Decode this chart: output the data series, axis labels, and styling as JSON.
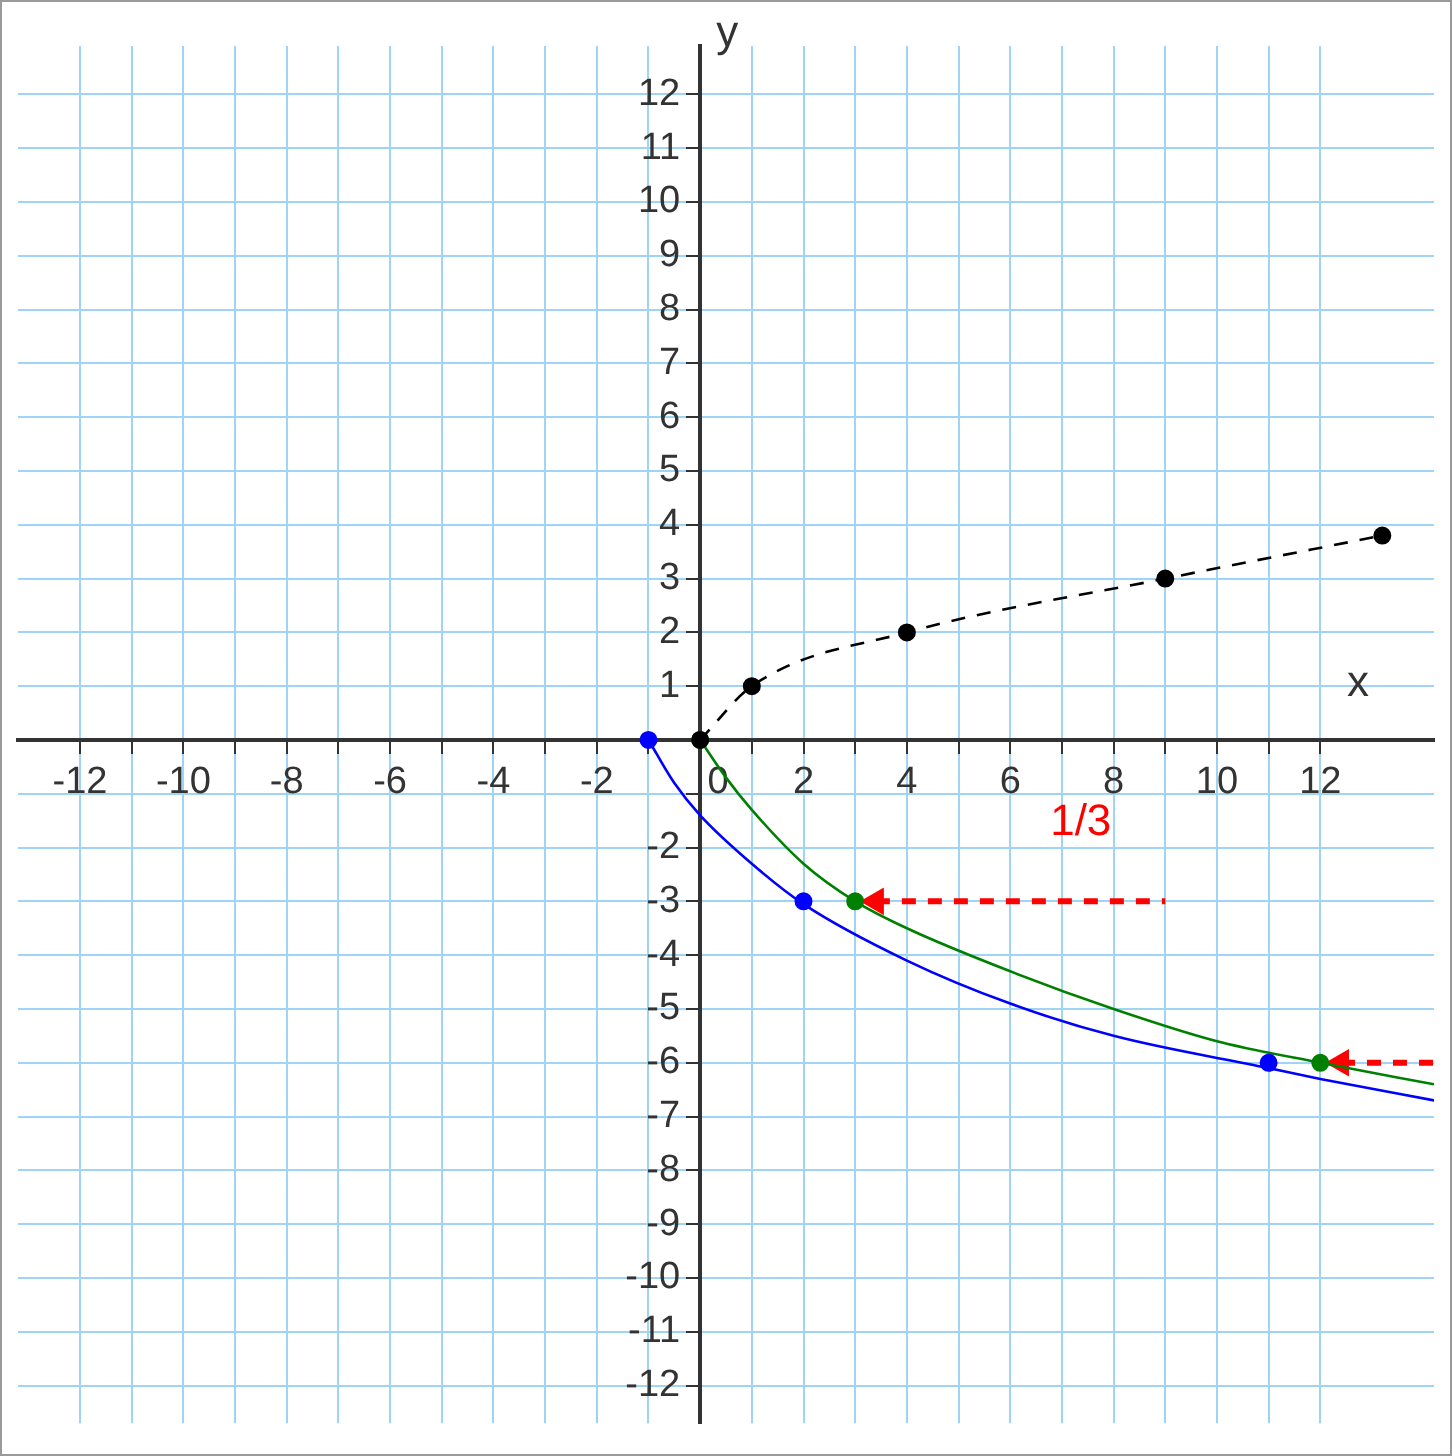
{
  "chart_data": {
    "type": "line",
    "xlabel": "x",
    "ylabel": "y",
    "xlim": [
      -13.2,
      14.2
    ],
    "ylim": [
      -12.7,
      12.9
    ],
    "xticks": [
      -12,
      {
        "value": -11,
        "label": null
      },
      -10,
      {
        "value": -9,
        "label": null
      },
      -8,
      {
        "value": -7,
        "label": null
      },
      -6,
      {
        "value": -5,
        "label": null
      },
      -4,
      {
        "value": -3,
        "label": null
      },
      -2,
      {
        "value": -1,
        "label": null
      },
      0,
      {
        "value": 1,
        "label": null
      },
      2,
      {
        "value": 3,
        "label": null
      },
      4,
      {
        "value": 5,
        "label": null
      },
      6,
      {
        "value": 7,
        "label": null
      },
      8,
      {
        "value": 9,
        "label": null
      },
      10,
      {
        "value": 11,
        "label": null
      },
      12
    ],
    "yticks": [
      -12,
      -11,
      -10,
      -9,
      -8,
      -7,
      -6,
      -5,
      -4,
      -3,
      -2,
      {
        "value": -1,
        "label": null
      },
      {
        "value": 0,
        "label": null
      },
      1,
      2,
      3,
      4,
      5,
      6,
      7,
      8,
      9,
      10,
      11,
      12
    ],
    "grid": true,
    "legend": false,
    "series": [
      {
        "type": "line",
        "color": "#000000",
        "marker": "circle",
        "line_style": "dashed",
        "x": [
          0,
          1,
          4,
          9,
          13.2
        ],
        "values": [
          0,
          1,
          2,
          3,
          3.8
        ]
      },
      {
        "type": "line",
        "color": "#0000ff",
        "marker": "none",
        "line_style": "solid",
        "x": [
          -1,
          -0.5,
          0,
          1,
          2,
          4,
          6,
          8,
          11,
          12,
          14.2
        ],
        "values": [
          0,
          -0.8,
          -1.4,
          -2.3,
          -3.05,
          -4.1,
          -4.9,
          -5.5,
          -6.1,
          -6.3,
          -6.7
        ]
      },
      {
        "type": "scatter",
        "color": "#0000ff",
        "marker": "circle",
        "x": [
          -1,
          2,
          11
        ],
        "values": [
          0,
          -3,
          -6
        ]
      },
      {
        "type": "line",
        "color": "#008000",
        "marker": "none",
        "line_style": "solid",
        "x": [
          0,
          0.5,
          1,
          2,
          3,
          4,
          6,
          8,
          10,
          12,
          14.2
        ],
        "values": [
          0,
          -0.7,
          -1.3,
          -2.3,
          -3,
          -3.5,
          -4.3,
          -5,
          -5.6,
          -6,
          -6.4
        ]
      },
      {
        "type": "scatter",
        "color": "#008000",
        "marker": "circle",
        "x": [
          0,
          3,
          12
        ],
        "values": [
          0,
          -3,
          -6
        ]
      },
      {
        "type": "line",
        "color": "#ff0000",
        "marker": "triangle",
        "line_style": "dashed",
        "x": [
          3.4,
          9
        ],
        "values": [
          -3,
          -3
        ]
      },
      {
        "type": "line",
        "color": "#ff0000",
        "marker": "triangle",
        "line_style": "dashed",
        "x": [
          12.4,
          14.2
        ],
        "values": [
          -6,
          -6
        ]
      }
    ],
    "annotations": [
      "1/3"
    ]
  }
}
